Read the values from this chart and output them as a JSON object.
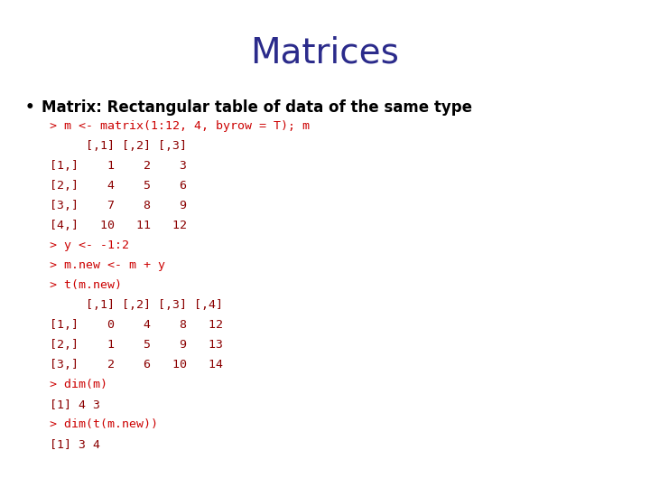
{
  "title": "Matrices",
  "title_color": "#2B2B8B",
  "title_fontsize": 28,
  "bg_color": "#ffffff",
  "bullet_text": "Matrix: Rectangular table of data of the same type",
  "bullet_fontsize": 12,
  "bullet_color": "#000000",
  "code_lines": [
    {
      "text": "> m <- matrix(1:12, 4, byrow = T); m",
      "color": "#cc0000"
    },
    {
      "text": "     [,1] [,2] [,3]",
      "color": "#8B0000"
    },
    {
      "text": "[1,]    1    2    3",
      "color": "#8B0000"
    },
    {
      "text": "[2,]    4    5    6",
      "color": "#8B0000"
    },
    {
      "text": "[3,]    7    8    9",
      "color": "#8B0000"
    },
    {
      "text": "[4,]   10   11   12",
      "color": "#8B0000"
    },
    {
      "text": "> y <- -1:2",
      "color": "#cc0000"
    },
    {
      "text": "> m.new <- m + y",
      "color": "#cc0000"
    },
    {
      "text": "> t(m.new)",
      "color": "#cc0000"
    },
    {
      "text": "     [,1] [,2] [,3] [,4]",
      "color": "#8B0000"
    },
    {
      "text": "[1,]    0    4    8   12",
      "color": "#8B0000"
    },
    {
      "text": "[2,]    1    5    9   13",
      "color": "#8B0000"
    },
    {
      "text": "[3,]    2    6   10   14",
      "color": "#8B0000"
    },
    {
      "text": "> dim(m)",
      "color": "#cc0000"
    },
    {
      "text": "[1] 4 3",
      "color": "#8B0000"
    },
    {
      "text": "> dim(t(m.new))",
      "color": "#cc0000"
    },
    {
      "text": "[1] 3 4",
      "color": "#8B0000"
    }
  ],
  "code_fontsize": 9.5,
  "code_font": "monospace"
}
